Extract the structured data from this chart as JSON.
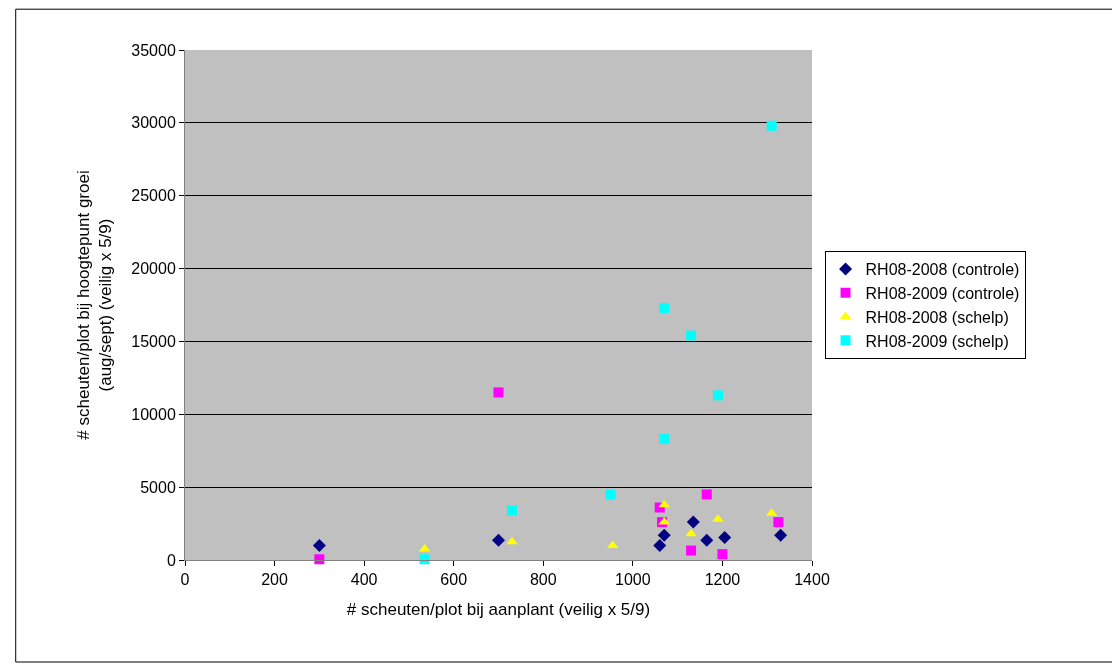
{
  "chart_data": {
    "type": "scatter",
    "xlabel": "# scheuten/plot bij aanplant (veilig x 5/9)",
    "ylabel": "# scheuten/plot bij hoogtepunt groei\n(aug/sept) (veilig x 5/9)",
    "xlim": [
      0,
      1400
    ],
    "xticks": [
      0,
      200,
      400,
      600,
      800,
      1000,
      1200,
      1400
    ],
    "ylim": [
      0,
      35000
    ],
    "yticks": [
      0,
      5000,
      10000,
      15000,
      20000,
      25000,
      30000,
      35000
    ],
    "grid": "y",
    "legend": "right",
    "series": [
      {
        "name": "RH08-2008 (controle)",
        "color": "#000080",
        "marker": "diamond",
        "x": [
          300,
          700,
          1060,
          1070,
          1135,
          1165,
          1205,
          1330
        ],
        "values": [
          1000,
          1350,
          1000,
          1700,
          2600,
          1350,
          1550,
          1700
        ]
      },
      {
        "name": "RH08-2009 (controle)",
        "color": "#ff00ff",
        "marker": "square",
        "x": [
          300,
          700,
          1060,
          1065,
          1130,
          1165,
          1200,
          1325
        ],
        "values": [
          50,
          11500,
          3600,
          2600,
          650,
          4500,
          400,
          2600
        ]
      },
      {
        "name": "RH08-2008 (schelp)",
        "color": "#ffff00",
        "marker": "triangle",
        "x": [
          535,
          730,
          955,
          1070,
          1070,
          1130,
          1190,
          1310
        ],
        "values": [
          750,
          1250,
          1000,
          3800,
          2600,
          1800,
          2800,
          3200
        ]
      },
      {
        "name": "RH08-2009 (schelp)",
        "color": "#00ffff",
        "marker": "square",
        "x": [
          535,
          730,
          950,
          1070,
          1070,
          1130,
          1190,
          1310
        ],
        "values": [
          50,
          3400,
          4500,
          17300,
          8300,
          15400,
          11300,
          29800
        ]
      }
    ]
  }
}
